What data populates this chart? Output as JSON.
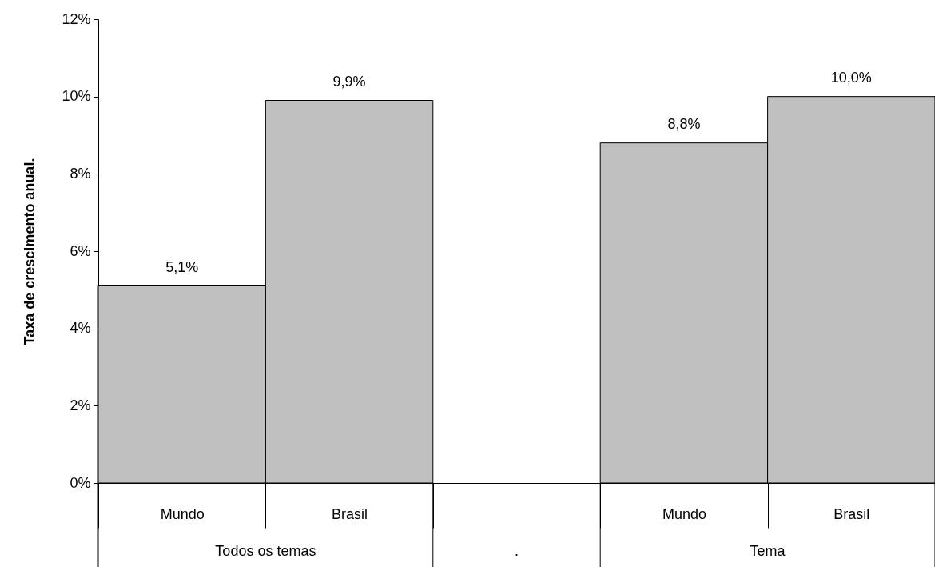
{
  "chart_data": {
    "type": "bar",
    "ylabel": "Taxa de crescimento anual.",
    "categories": [
      "Mundo",
      "Brasil",
      null,
      "Mundo",
      "Brasil"
    ],
    "values": [
      5.1,
      9.9,
      null,
      8.8,
      10.0
    ],
    "value_labels": [
      "5,1%",
      "9,9%",
      null,
      "8,8%",
      "10,0%"
    ],
    "color": "#c0c0c0",
    "ylim": [
      0,
      12
    ],
    "yticks": [
      {
        "value": 0,
        "label": "0%"
      },
      {
        "value": 2,
        "label": "2%"
      },
      {
        "value": 4,
        "label": "4%"
      },
      {
        "value": 6,
        "label": "6%"
      },
      {
        "value": 8,
        "label": "8%"
      },
      {
        "value": 10,
        "label": "10%"
      },
      {
        "value": 12,
        "label": "12%"
      }
    ],
    "annotations": [
      "Todos os temas",
      ".",
      "Tema"
    ],
    "grid": false
  }
}
